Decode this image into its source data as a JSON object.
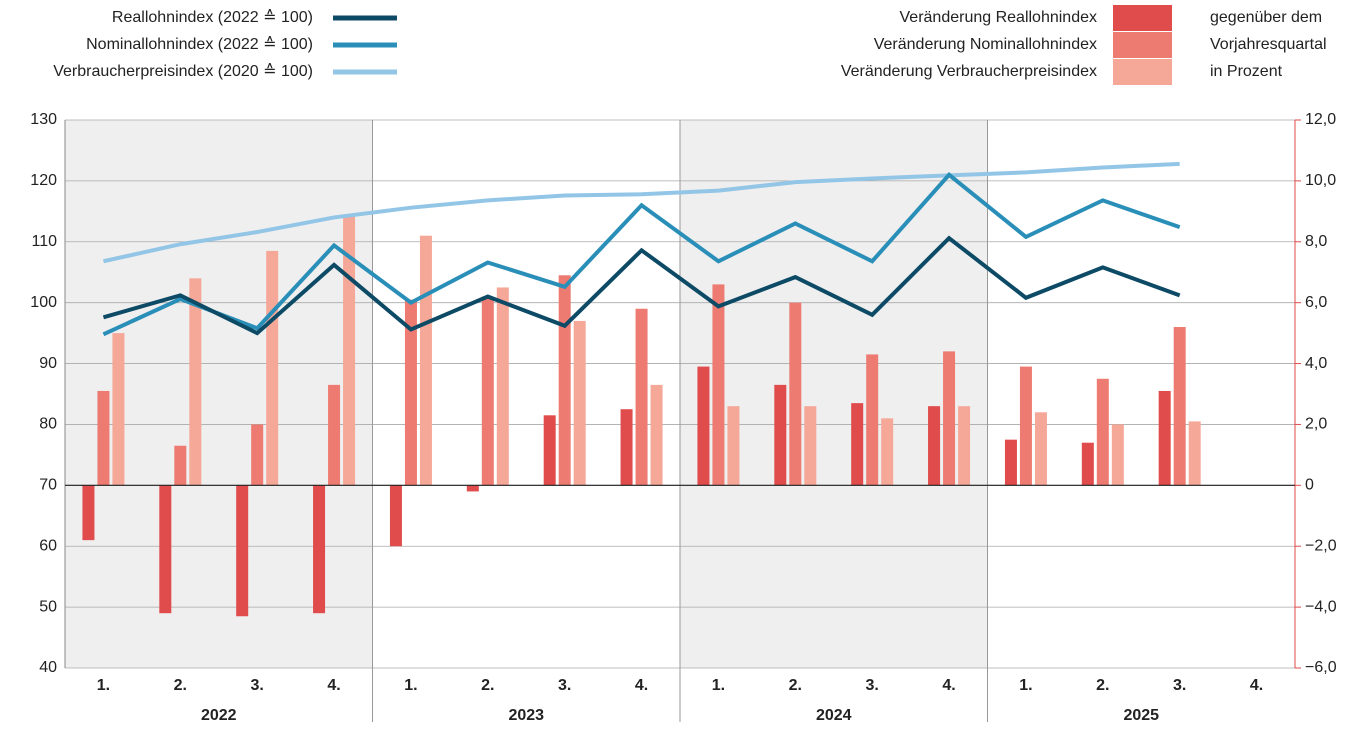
{
  "chart_data": {
    "type": "bar-line",
    "categories": [
      "1.",
      "2.",
      "3.",
      "4.",
      "1.",
      "2.",
      "3.",
      "4.",
      "1.",
      "2.",
      "3.",
      "4.",
      "1.",
      "2.",
      "3.",
      "4."
    ],
    "groups": [
      "2022",
      "2023",
      "2024",
      "2025"
    ],
    "series": [
      {
        "name": "Reallohnindex (2022 ≙ 100)",
        "type": "line",
        "axis": "y",
        "color": "#0d4a66",
        "values": [
          97.6,
          101.2,
          95.0,
          106.2,
          95.6,
          101.0,
          96.2,
          108.6,
          99.4,
          104.2,
          98.0,
          110.6,
          100.8,
          105.8,
          101.2,
          null
        ]
      },
      {
        "name": "Nominallohnindex (2022 ≙ 100)",
        "type": "line",
        "axis": "y",
        "color": "#2a8fb8",
        "values": [
          94.8,
          100.6,
          95.8,
          109.4,
          100.0,
          106.6,
          102.6,
          116.0,
          106.8,
          113.0,
          106.8,
          121.0,
          110.8,
          116.8,
          112.4,
          null
        ]
      },
      {
        "name": "Verbraucherpreisindex (2020 ≙ 100)",
        "type": "line",
        "axis": "y",
        "color": "#93c6e6",
        "values": [
          106.8,
          109.6,
          111.6,
          114.0,
          115.6,
          116.8,
          117.6,
          117.8,
          118.4,
          119.8,
          120.4,
          120.9,
          121.4,
          122.2,
          122.8,
          null
        ]
      },
      {
        "name": "Veränderung Reallohnindex",
        "type": "bar",
        "axis": "y2",
        "color": "#e04b4b",
        "values": [
          -1.8,
          -4.2,
          -4.3,
          -4.2,
          -2.0,
          -0.2,
          2.3,
          2.5,
          3.9,
          3.3,
          2.7,
          2.6,
          1.5,
          1.4,
          3.1,
          null
        ]
      },
      {
        "name": "Veränderung Nominallohnindex",
        "type": "bar",
        "axis": "y2",
        "color": "#ee7b72",
        "values": [
          3.1,
          1.3,
          2.0,
          3.3,
          6.1,
          6.2,
          6.9,
          5.8,
          6.6,
          6.0,
          4.3,
          4.4,
          3.9,
          3.5,
          5.2,
          null
        ]
      },
      {
        "name": "Veränderung Verbraucherpreisindex",
        "type": "bar",
        "axis": "y2",
        "color": "#f5a898",
        "values": [
          5.0,
          6.8,
          7.7,
          8.9,
          8.2,
          6.5,
          5.4,
          3.3,
          2.6,
          2.6,
          2.2,
          2.6,
          2.4,
          2.0,
          2.1,
          null
        ]
      }
    ],
    "legend_note": [
      "gegenüber dem",
      "Vorjahresquartal",
      "in Prozent"
    ],
    "ylim": [
      40,
      130
    ],
    "yticks": [
      40,
      50,
      60,
      70,
      80,
      90,
      100,
      110,
      120,
      130
    ],
    "y2lim": [
      -6,
      12
    ],
    "y2ticks": [
      {
        "value": -6,
        "label": "−6,0"
      },
      {
        "value": -4,
        "label": "−4,0"
      },
      {
        "value": -2,
        "label": "−2,0"
      },
      0,
      {
        "value": 2,
        "label": "2,0"
      },
      {
        "value": 4,
        "label": "4,0"
      },
      {
        "value": 6,
        "label": "6,0"
      },
      {
        "value": 8,
        "label": "8,0"
      },
      {
        "value": 10,
        "label": "10,0"
      },
      {
        "value": 12,
        "label": "12,0"
      }
    ],
    "grid": true,
    "y2_color": "#e04b4b",
    "shade_color": "#efefef"
  }
}
